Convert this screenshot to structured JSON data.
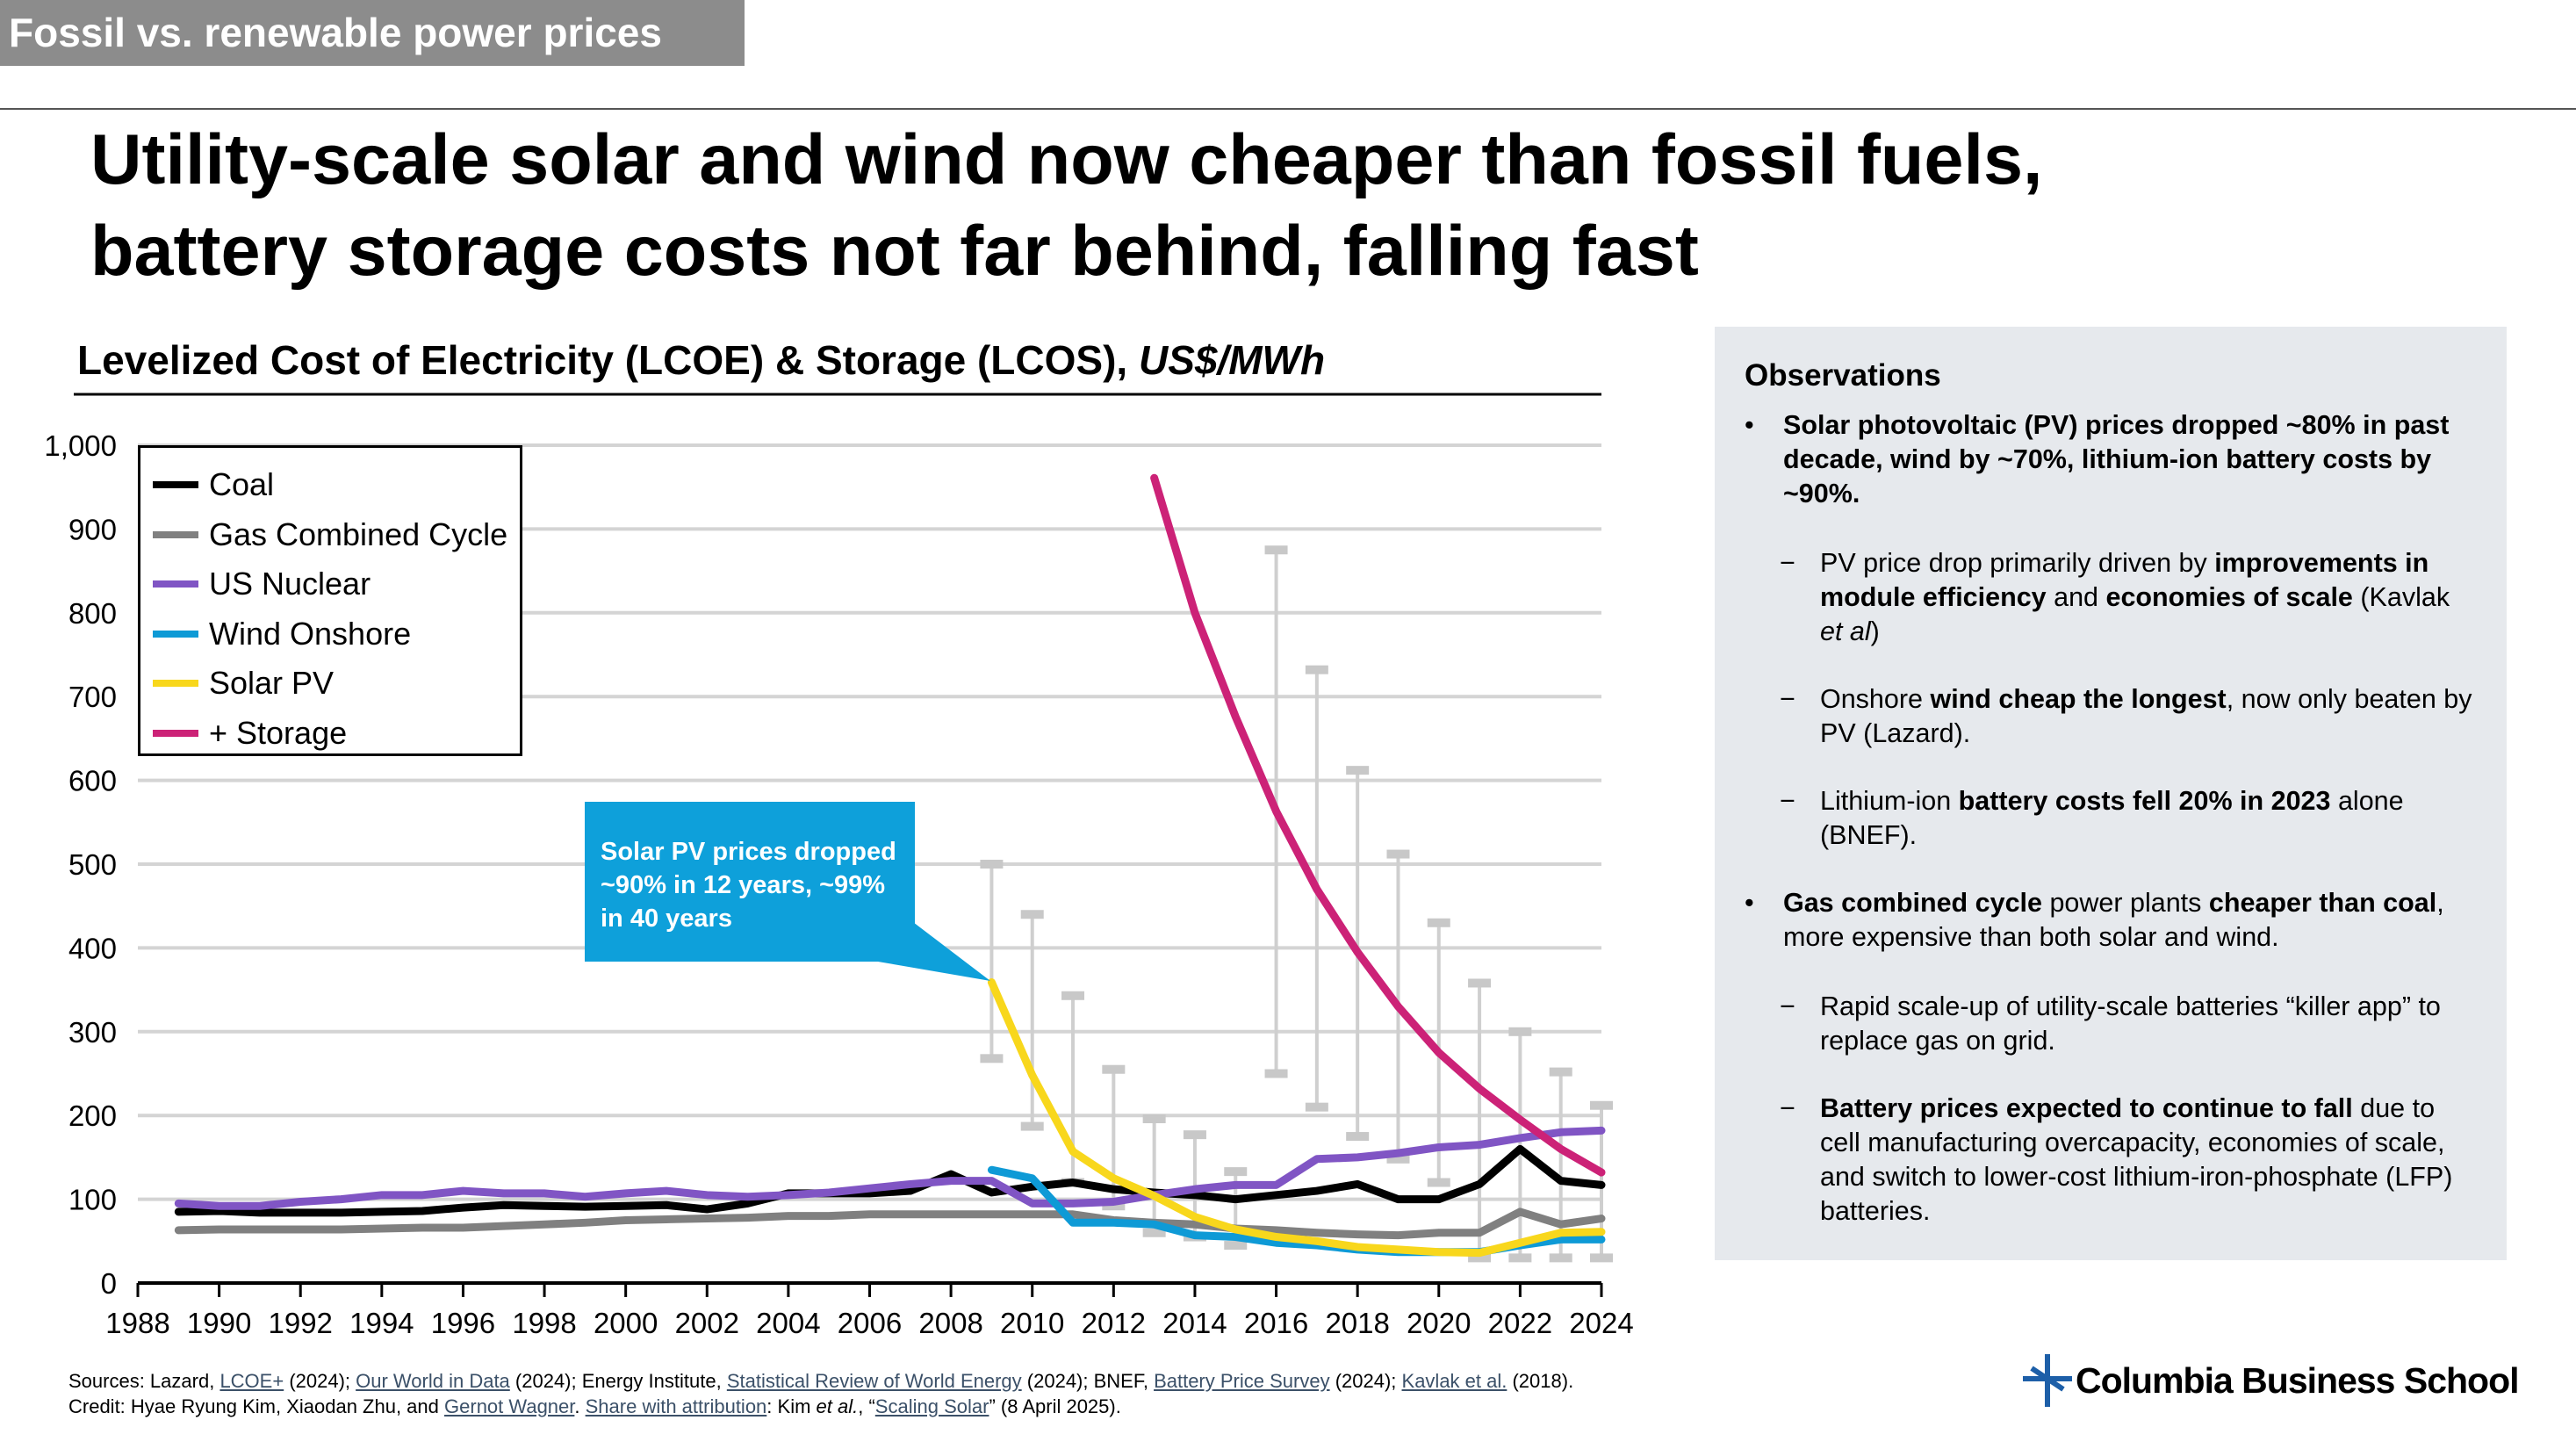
{
  "header": {
    "section_tag": "Fossil vs. renewable power prices",
    "title_line1": "Utility-scale solar and wind now cheaper than fossil fuels,",
    "title_line2": "battery storage costs not far behind, falling fast"
  },
  "chart_title": {
    "main": "Levelized Cost of Electricity (LCOE) & Storage (LCOS), ",
    "unit": "US$/MWh"
  },
  "annotation": {
    "text": "Solar PV prices dropped ~90% in 12 years, ~99% in 40 years",
    "color": "#0ea0da"
  },
  "chart_data": {
    "type": "line",
    "title": "Levelized Cost of Electricity (LCOE) & Storage (LCOS), US$/MWh",
    "xlabel": "",
    "ylabel": "US$/MWh",
    "xlim": [
      1988,
      2024
    ],
    "ylim": [
      0,
      1000
    ],
    "grid": true,
    "legend_position": "top-left",
    "x_ticks": [
      "1988",
      "1990",
      "1992",
      "1994",
      "1996",
      "1998",
      "2000",
      "2002",
      "2004",
      "2006",
      "2008",
      "2010",
      "2012",
      "2014",
      "2016",
      "2018",
      "2020",
      "2022",
      "2024"
    ],
    "y_ticks": [
      "0",
      "100",
      "200",
      "300",
      "400",
      "500",
      "600",
      "700",
      "800",
      "900",
      "1,000"
    ],
    "series": [
      {
        "name": "Coal",
        "color": "#000000",
        "start": 1989,
        "values": [
          85,
          86,
          84,
          84,
          84,
          85,
          86,
          90,
          93,
          92,
          91,
          92,
          93,
          88,
          95,
          107,
          107,
          107,
          110,
          130,
          108,
          115,
          120,
          112,
          108,
          105,
          100,
          105,
          110,
          118,
          100,
          100,
          118,
          160,
          122,
          117
        ]
      },
      {
        "name": "Gas Combined Cycle",
        "color": "#808080",
        "start": 1989,
        "values": [
          63,
          64,
          64,
          64,
          64,
          65,
          66,
          66,
          68,
          70,
          72,
          75,
          76,
          77,
          78,
          80,
          80,
          82,
          82,
          82,
          82,
          82,
          82,
          75,
          72,
          70,
          65,
          63,
          60,
          58,
          57,
          60,
          60,
          85,
          70,
          77
        ]
      },
      {
        "name": "US Nuclear",
        "color": "#8055c4",
        "start": 1989,
        "values": [
          95,
          92,
          92,
          97,
          100,
          105,
          105,
          110,
          107,
          107,
          103,
          107,
          110,
          105,
          103,
          105,
          108,
          113,
          118,
          122,
          122,
          95,
          95,
          97,
          105,
          112,
          117,
          117,
          148,
          150,
          155,
          162,
          165,
          173,
          180,
          182
        ]
      },
      {
        "name": "Wind Onshore",
        "color": "#0e9ad6",
        "start": 2009,
        "values": [
          135,
          125,
          72,
          72,
          70,
          57,
          55,
          48,
          45,
          40,
          37,
          37,
          37,
          45,
          52,
          52
        ]
      },
      {
        "name": "Solar PV",
        "color": "#f8d71c",
        "start": 2009,
        "values": [
          359,
          248,
          157,
          125,
          104,
          79,
          64,
          55,
          50,
          43,
          40,
          37,
          36,
          48,
          60,
          61
        ]
      },
      {
        "name": "+ Storage",
        "color": "#cc2277",
        "start": 2013,
        "values": [
          961,
          800,
          676,
          563,
          470,
          395,
          330,
          275,
          232,
          195,
          160,
          132
        ]
      }
    ],
    "ranges": [
      {
        "x": 2009,
        "low": 268,
        "high": 500
      },
      {
        "x": 2010,
        "low": 187,
        "high": 440
      },
      {
        "x": 2011,
        "low": 120,
        "high": 343
      },
      {
        "x": 2012,
        "low": 92,
        "high": 255
      },
      {
        "x": 2013,
        "low": 60,
        "high": 196
      },
      {
        "x": 2014,
        "low": 55,
        "high": 177
      },
      {
        "x": 2015,
        "low": 45,
        "high": 133
      },
      {
        "x": 2016,
        "low": 250,
        "high": 875
      },
      {
        "x": 2017,
        "low": 210,
        "high": 732
      },
      {
        "x": 2018,
        "low": 175,
        "high": 612
      },
      {
        "x": 2019,
        "low": 148,
        "high": 512
      },
      {
        "x": 2020,
        "low": 120,
        "high": 430
      },
      {
        "x": 2021,
        "low": 30,
        "high": 358
      },
      {
        "x": 2022,
        "low": 30,
        "high": 300
      },
      {
        "x": 2023,
        "low": 30,
        "high": 252
      },
      {
        "x": 2024,
        "low": 30,
        "high": 212
      }
    ]
  },
  "observations": {
    "title": "Observations",
    "items": [
      {
        "level": 1,
        "bold": "Solar photovoltaic (PV) prices dropped ~80% in past decade, wind by ~70%, lithium-ion battery costs by ~90%.",
        "rest": ""
      },
      {
        "level": 2,
        "t1": "PV price drop primarily driven by ",
        "b1": "improvements in module efficiency",
        "t2": " and ",
        "b2": "economies of scale",
        "t3": " (Kavlak ",
        "i": "et al",
        "t4": ")"
      },
      {
        "level": 2,
        "t1": "Onshore ",
        "b1": "wind cheap the longest",
        "t2": ", now only beaten by PV (Lazard)."
      },
      {
        "level": 2,
        "t1": "Lithium-ion ",
        "b1": "battery costs fell 20% in 2023",
        "t2": " alone (BNEF)."
      },
      {
        "level": 1,
        "b1": "Gas combined cycle",
        "t1": " power plants ",
        "b2": "cheaper than coal",
        "t2": ", more expensive than both solar and wind."
      },
      {
        "level": 2,
        "t1": "Rapid scale-up of utility-scale batteries “killer app” to replace gas on grid."
      },
      {
        "level": 2,
        "b1": "Battery prices expected to continue to fall",
        "t1": " due to cell manufacturing overcapacity, economies of scale, and switch to lower-cost lithium-iron-phosphate (LFP) batteries."
      }
    ]
  },
  "footer": {
    "sources_prefix": "Sources: Lazard, ",
    "link1": "LCOE+",
    "s1": " (2024); ",
    "link2": "Our World in Data",
    "s2": " (2024); Energy Institute, ",
    "link3": "Statistical Review of World Energy",
    "s3": " (2024); BNEF, ",
    "link4": "Battery Price Survey",
    "s4": " (2024); ",
    "link5": "Kavlak et al.",
    "s5": " (2018).",
    "credit_prefix": "Credit: Hyae Ryung Kim, Xiaodan Zhu, and ",
    "link6": "Gernot Wagner",
    "c1": ". ",
    "link7": "Share with attribution",
    "c2": ": Kim ",
    "c_i": "et al.",
    "c3": ", “",
    "link8": "Scaling Solar",
    "c4": "” (8 April 2025)."
  },
  "logo": {
    "text": "Columbia Business School"
  }
}
